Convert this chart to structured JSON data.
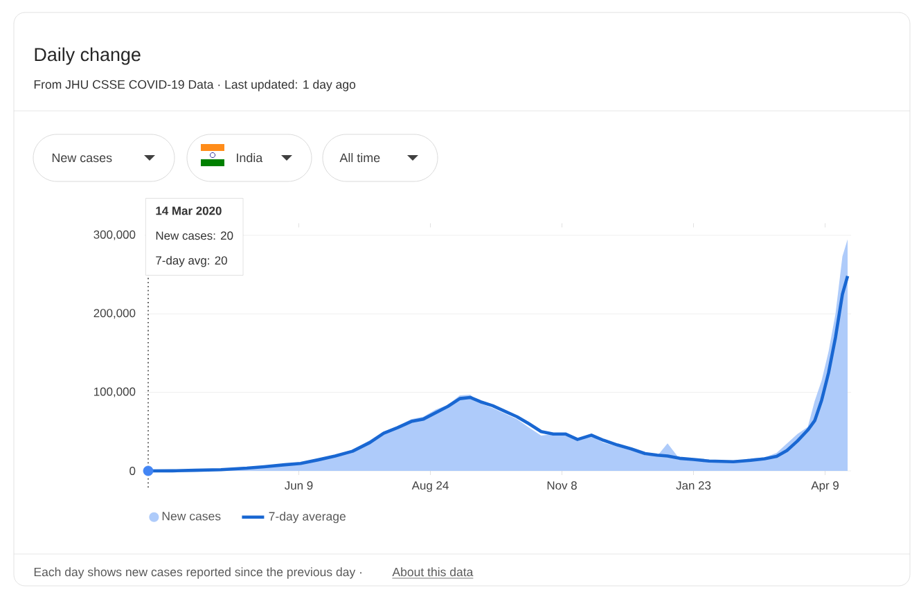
{
  "chart_data": {
    "type": "area",
    "title": "Daily change",
    "subtitle": "From JHU CSSE COVID-19 Data · Last updated: 1 day ago",
    "annotations": [
      "New cases",
      "India",
      "All time",
      "14 Mar 2020",
      "New cases: 20",
      "7-day avg: 20",
      "Each day shows new cases reported since the previous day ·",
      "About this data"
    ],
    "x": [
      "2020-03-14",
      "2020-03-28",
      "2020-04-10",
      "2020-04-25",
      "2020-05-10",
      "2020-05-20",
      "2020-06-01",
      "2020-06-10",
      "2020-06-20",
      "2020-06-30",
      "2020-07-10",
      "2020-07-20",
      "2020-07-28",
      "2020-08-05",
      "2020-08-13",
      "2020-08-20",
      "2020-08-27",
      "2020-09-03",
      "2020-09-10",
      "2020-09-16",
      "2020-09-22",
      "2020-09-29",
      "2020-10-06",
      "2020-10-13",
      "2020-10-20",
      "2020-10-27",
      "2020-11-03",
      "2020-11-10",
      "2020-11-17",
      "2020-11-25",
      "2020-12-02",
      "2020-12-10",
      "2020-12-18",
      "2020-12-26",
      "2021-01-02",
      "2021-01-08",
      "2021-01-15",
      "2021-01-23",
      "2021-02-01",
      "2021-02-15",
      "2021-02-25",
      "2021-03-05",
      "2021-03-12",
      "2021-03-18",
      "2021-03-24",
      "2021-03-30",
      "2021-04-03",
      "2021-04-07",
      "2021-04-11",
      "2021-04-15",
      "2021-04-19",
      "2021-04-22"
    ],
    "series": [
      {
        "name": "New cases",
        "color": "#aecbfa",
        "values": [
          20,
          150,
          900,
          1800,
          4000,
          5600,
          8300,
          10000,
          15000,
          19500,
          27000,
          39000,
          50000,
          57000,
          66000,
          69000,
          78000,
          84000,
          96000,
          97000,
          86000,
          80000,
          73000,
          66000,
          55000,
          45000,
          47000,
          45000,
          38000,
          44000,
          36000,
          31000,
          26000,
          20000,
          19000,
          35000,
          15000,
          14000,
          11500,
          11600,
          16000,
          17000,
          23000,
          35000,
          47000,
          56000,
          89000,
          115000,
          152000,
          200000,
          273000,
          295000
        ]
      },
      {
        "name": "7-day average",
        "type": "line",
        "color": "#1967d2",
        "marker": "none",
        "values": [
          20,
          100,
          800,
          1600,
          3500,
          5300,
          7800,
          9500,
          14000,
          19000,
          25000,
          36000,
          48000,
          55000,
          63000,
          66000,
          74000,
          82000,
          92000,
          93500,
          88000,
          83000,
          76000,
          69000,
          60000,
          50000,
          47000,
          47000,
          40000,
          45500,
          39000,
          33000,
          28000,
          22000,
          20000,
          19000,
          16000,
          14600,
          12500,
          11700,
          13500,
          15500,
          18500,
          26000,
          38000,
          52000,
          64000,
          90000,
          125000,
          170000,
          225000,
          248000
        ]
      },
      {
        "type": "scatter",
        "color": "#4285f4",
        "marker": "circle",
        "x": [
          "2020-03-14"
        ],
        "values": [
          20
        ]
      }
    ],
    "xlim": [
      "2020-03-12",
      "2021-04-24"
    ],
    "xticks": [
      {
        "value": "2020-06-09",
        "label": "Jun 9"
      },
      {
        "value": "2020-08-24",
        "label": "Aug 24"
      },
      {
        "value": "2020-11-08",
        "label": "Nov 8"
      },
      {
        "value": "2021-01-23",
        "label": "Jan 23"
      },
      {
        "value": "2021-04-09",
        "label": "Apr 9"
      }
    ],
    "ylim": [
      0,
      310000
    ],
    "yticks": [
      0,
      {
        "value": 100000,
        "label": "100,000"
      },
      {
        "value": 200000,
        "label": "200,000"
      },
      {
        "value": 300000,
        "label": "300,000"
      }
    ],
    "ref_lines": [
      {
        "axis": "x",
        "value": "2020-03-14",
        "color": "#555555",
        "line_style": "dotted"
      }
    ],
    "grid": "y",
    "legend": "bottom left"
  }
}
